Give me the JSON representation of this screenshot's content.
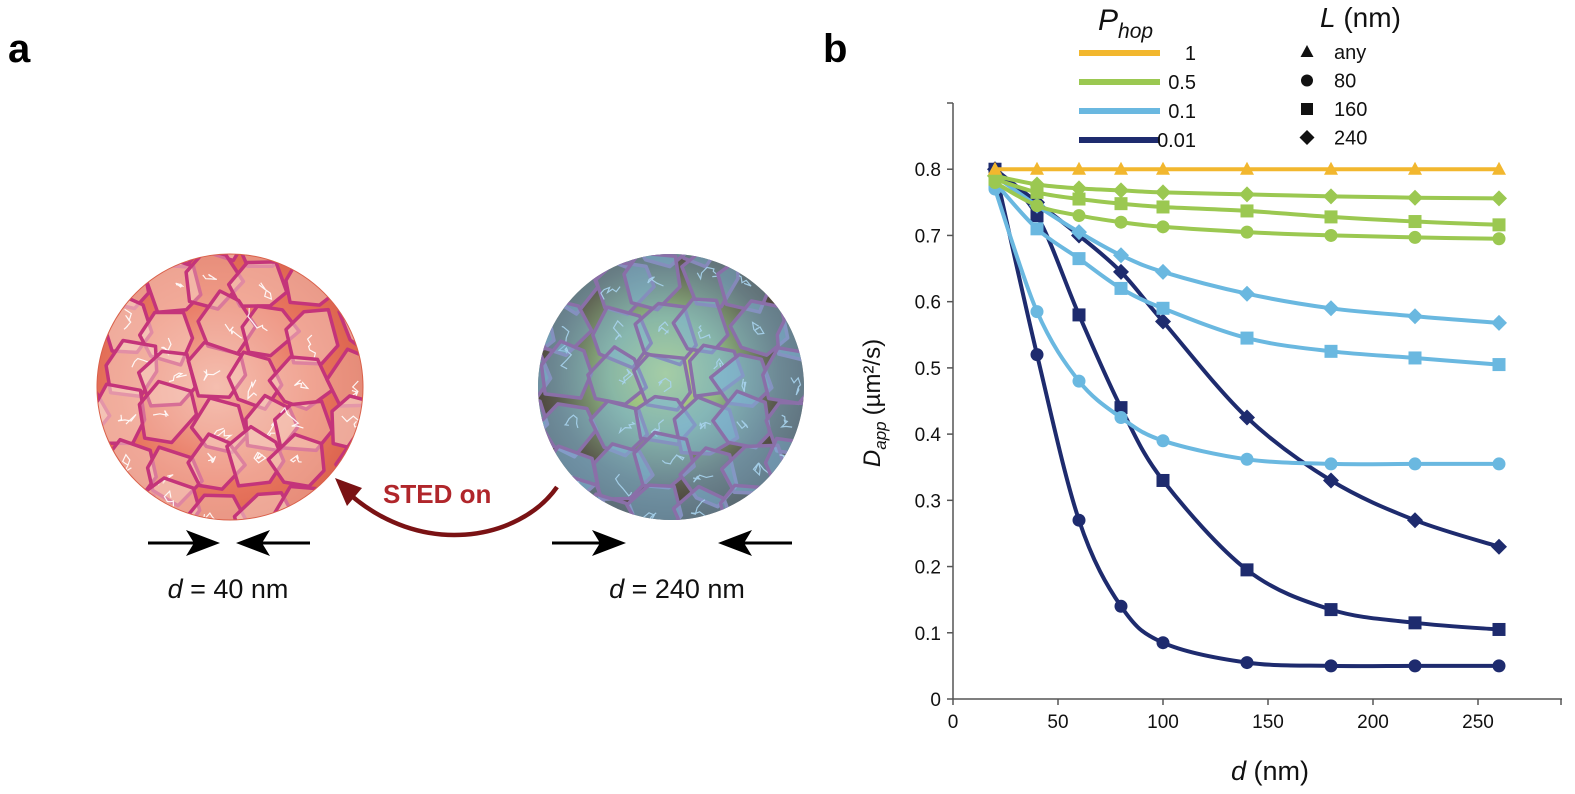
{
  "panel_a": {
    "label": "a",
    "sted_label": "STED on",
    "left_caption": {
      "var": "d",
      "rest": " = 40 nm"
    },
    "right_caption": {
      "var": "d",
      "rest": " = 240 nm"
    },
    "colors": {
      "left_fill": "#e8765f",
      "left_mesh": "#c4347a",
      "right_bg": "#3b2a22",
      "right_glow": "#b9d96a",
      "right_mesh": "#8a6fa8",
      "arrow": "#7a1214",
      "sted_text": "#b0262b"
    }
  },
  "panel_b": {
    "label": "b"
  },
  "chart_data": {
    "type": "line",
    "xlabel_var": "d",
    "xlabel_unit": " (nm)",
    "ylabel_var": "D",
    "ylabel_sub": "app",
    "ylabel_unit": "(µm²/s)",
    "xlim": [
      0,
      290
    ],
    "ylim": [
      0,
      0.9
    ],
    "xticks": [
      0,
      50,
      100,
      150,
      200,
      250
    ],
    "xtick_labels": [
      "0",
      "50",
      "100",
      "150",
      "200",
      "250"
    ],
    "yticks": [
      0,
      0.1,
      0.2,
      0.3,
      0.4,
      0.5,
      0.6,
      0.7,
      0.8
    ],
    "ytick_labels": [
      "0",
      "0.1",
      "0.2",
      "0.3",
      "0.4",
      "0.5",
      "0.6",
      "0.7",
      "0.8"
    ],
    "legend_phop": {
      "title_var": "P",
      "title_sub": "hop",
      "entries": [
        {
          "label": "1",
          "color": "#f2b72e"
        },
        {
          "label": "0.5",
          "color": "#9bc851"
        },
        {
          "label": "0.1",
          "color": "#6ab8e0"
        },
        {
          "label": "0.01",
          "color": "#1e2b6e"
        }
      ]
    },
    "legend_L": {
      "title_var": "L",
      "title_unit": " (nm)",
      "entries": [
        {
          "label": "any",
          "marker": "triangle"
        },
        {
          "label": "80",
          "marker": "circle"
        },
        {
          "label": "160",
          "marker": "square"
        },
        {
          "label": "240",
          "marker": "diamond"
        }
      ]
    },
    "x": [
      20,
      40,
      60,
      80,
      100,
      140,
      180,
      220,
      260
    ],
    "series": [
      {
        "phop": "0.01",
        "L": "80",
        "color": "#1e2b6e",
        "marker": "circle",
        "values": [
          0.8,
          0.52,
          0.27,
          0.14,
          0.085,
          0.055,
          0.05,
          0.05,
          0.05
        ]
      },
      {
        "phop": "0.01",
        "L": "160",
        "color": "#1e2b6e",
        "marker": "square",
        "values": [
          0.8,
          0.73,
          0.58,
          0.44,
          0.33,
          0.195,
          0.135,
          0.115,
          0.105
        ]
      },
      {
        "phop": "0.01",
        "L": "240",
        "color": "#1e2b6e",
        "marker": "diamond",
        "values": [
          0.8,
          0.75,
          0.7,
          0.645,
          0.57,
          0.425,
          0.33,
          0.27,
          0.23
        ]
      },
      {
        "phop": "0.1",
        "L": "80",
        "color": "#6ab8e0",
        "marker": "circle",
        "values": [
          0.77,
          0.585,
          0.48,
          0.425,
          0.39,
          0.362,
          0.355,
          0.355,
          0.355
        ]
      },
      {
        "phop": "0.1",
        "L": "160",
        "color": "#6ab8e0",
        "marker": "square",
        "values": [
          0.78,
          0.71,
          0.665,
          0.62,
          0.59,
          0.545,
          0.525,
          0.515,
          0.505
        ]
      },
      {
        "phop": "0.1",
        "L": "240",
        "color": "#6ab8e0",
        "marker": "diamond",
        "values": [
          0.79,
          0.745,
          0.705,
          0.67,
          0.645,
          0.612,
          0.59,
          0.578,
          0.568
        ]
      },
      {
        "phop": "0.5",
        "L": "80",
        "color": "#9bc851",
        "marker": "circle",
        "values": [
          0.78,
          0.745,
          0.73,
          0.72,
          0.713,
          0.705,
          0.7,
          0.697,
          0.695
        ]
      },
      {
        "phop": "0.5",
        "L": "160",
        "color": "#9bc851",
        "marker": "square",
        "values": [
          0.785,
          0.765,
          0.755,
          0.748,
          0.743,
          0.737,
          0.728,
          0.721,
          0.716
        ]
      },
      {
        "phop": "0.5",
        "L": "240",
        "color": "#9bc851",
        "marker": "diamond",
        "values": [
          0.79,
          0.777,
          0.771,
          0.768,
          0.765,
          0.762,
          0.759,
          0.757,
          0.756
        ]
      },
      {
        "phop": "1",
        "L": "any",
        "color": "#f2b72e",
        "marker": "triangle",
        "values": [
          0.8,
          0.8,
          0.8,
          0.8,
          0.8,
          0.8,
          0.8,
          0.8,
          0.8
        ]
      }
    ]
  }
}
